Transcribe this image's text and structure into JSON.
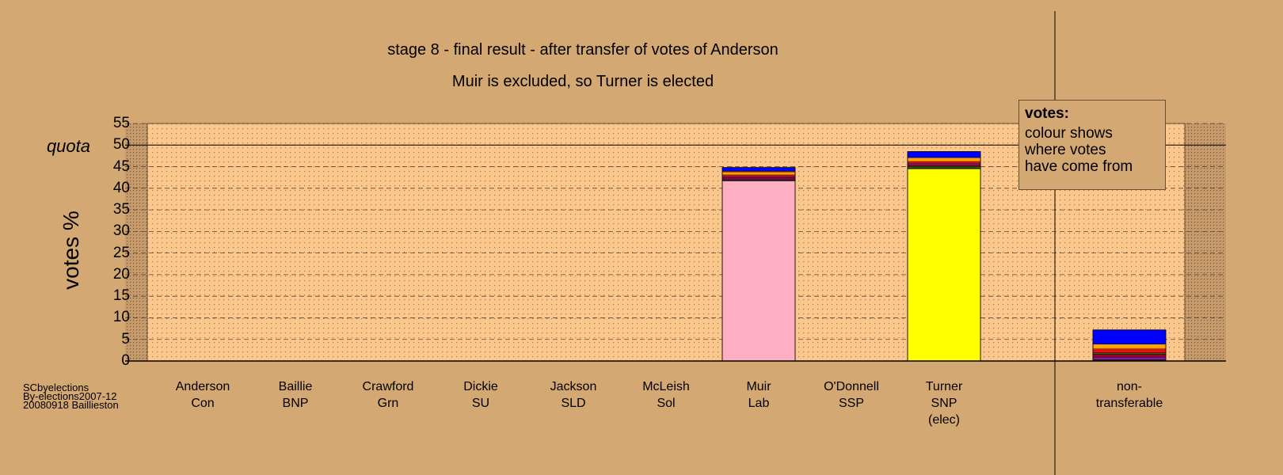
{
  "title_line1": "stage 8 - final result - after transfer of votes of Anderson",
  "title_line2": "Muir is excluded, so Turner is elected",
  "legend": {
    "heading": "votes:",
    "lines": [
      "colour shows",
      "where votes",
      "have come from"
    ]
  },
  "footer": [
    "SCbyelections",
    "By-elections2007-12",
    "20080918 Baillieston"
  ],
  "quota_label": "quota",
  "colors": {
    "background": "#d4a873",
    "plot_bg": "#fcc78d",
    "side_band": "#c69a6b",
    "Con": "#0000ff",
    "BNP": "#a0002a",
    "Grn": "#008000",
    "SU": "#7b1fa2",
    "SLD": "#ffa500",
    "Sol": "#e81010",
    "Lab": "#ffafc1",
    "SSP": "#cc2222",
    "SNP": "#ffff00",
    "other": "#333333"
  },
  "chart_data": {
    "type": "bar",
    "stacked": true,
    "title": "stage 8 - final result - after transfer of votes of Anderson",
    "subtitle": "Muir is excluded, so Turner is elected",
    "xlabel": "",
    "ylabel": "votes %",
    "ylim": [
      0,
      55
    ],
    "yticks": [
      0,
      5,
      10,
      15,
      20,
      25,
      30,
      35,
      40,
      45,
      50,
      55
    ],
    "quota": 50,
    "grid": true,
    "legend_position": "top-right",
    "categories": [
      {
        "name": "Anderson",
        "party": "Con",
        "note": ""
      },
      {
        "name": "Baillie",
        "party": "BNP",
        "note": ""
      },
      {
        "name": "Crawford",
        "party": "Grn",
        "note": ""
      },
      {
        "name": "Dickie",
        "party": "SU",
        "note": ""
      },
      {
        "name": "Jackson",
        "party": "SLD",
        "note": ""
      },
      {
        "name": "McLeish",
        "party": "Sol",
        "note": ""
      },
      {
        "name": "Muir",
        "party": "Lab",
        "note": ""
      },
      {
        "name": "O'Donnell",
        "party": "SSP",
        "note": ""
      },
      {
        "name": "Turner",
        "party": "SNP",
        "note": "(elec)"
      },
      {
        "name": "non-",
        "party": "transferable",
        "note": ""
      }
    ],
    "stacks": [
      [],
      [],
      [],
      [],
      [],
      [],
      [
        {
          "source": "Lab",
          "value": 41.7
        },
        {
          "source": "other",
          "value": 0.3
        },
        {
          "source": "BNP",
          "value": 0.4
        },
        {
          "source": "SU",
          "value": 0.3
        },
        {
          "source": "Sol",
          "value": 0.4
        },
        {
          "source": "SLD",
          "value": 0.7
        },
        {
          "source": "SSP",
          "value": 0.2
        },
        {
          "source": "Con",
          "value": 0.8
        }
      ],
      [],
      [
        {
          "source": "SNP",
          "value": 44.5
        },
        {
          "source": "other",
          "value": 0.2
        },
        {
          "source": "Grn",
          "value": 0.3
        },
        {
          "source": "BNP",
          "value": 0.4
        },
        {
          "source": "SU",
          "value": 0.3
        },
        {
          "source": "Sol",
          "value": 0.5
        },
        {
          "source": "SLD",
          "value": 0.9
        },
        {
          "source": "Con",
          "value": 1.4
        }
      ],
      [
        {
          "source": "other",
          "value": 0.3
        },
        {
          "source": "SU",
          "value": 0.6
        },
        {
          "source": "BNP",
          "value": 0.7
        },
        {
          "source": "Grn",
          "value": 0.3
        },
        {
          "source": "Sol",
          "value": 0.9
        },
        {
          "source": "SLD",
          "value": 1.1
        },
        {
          "source": "Con",
          "value": 3.3
        }
      ]
    ]
  }
}
